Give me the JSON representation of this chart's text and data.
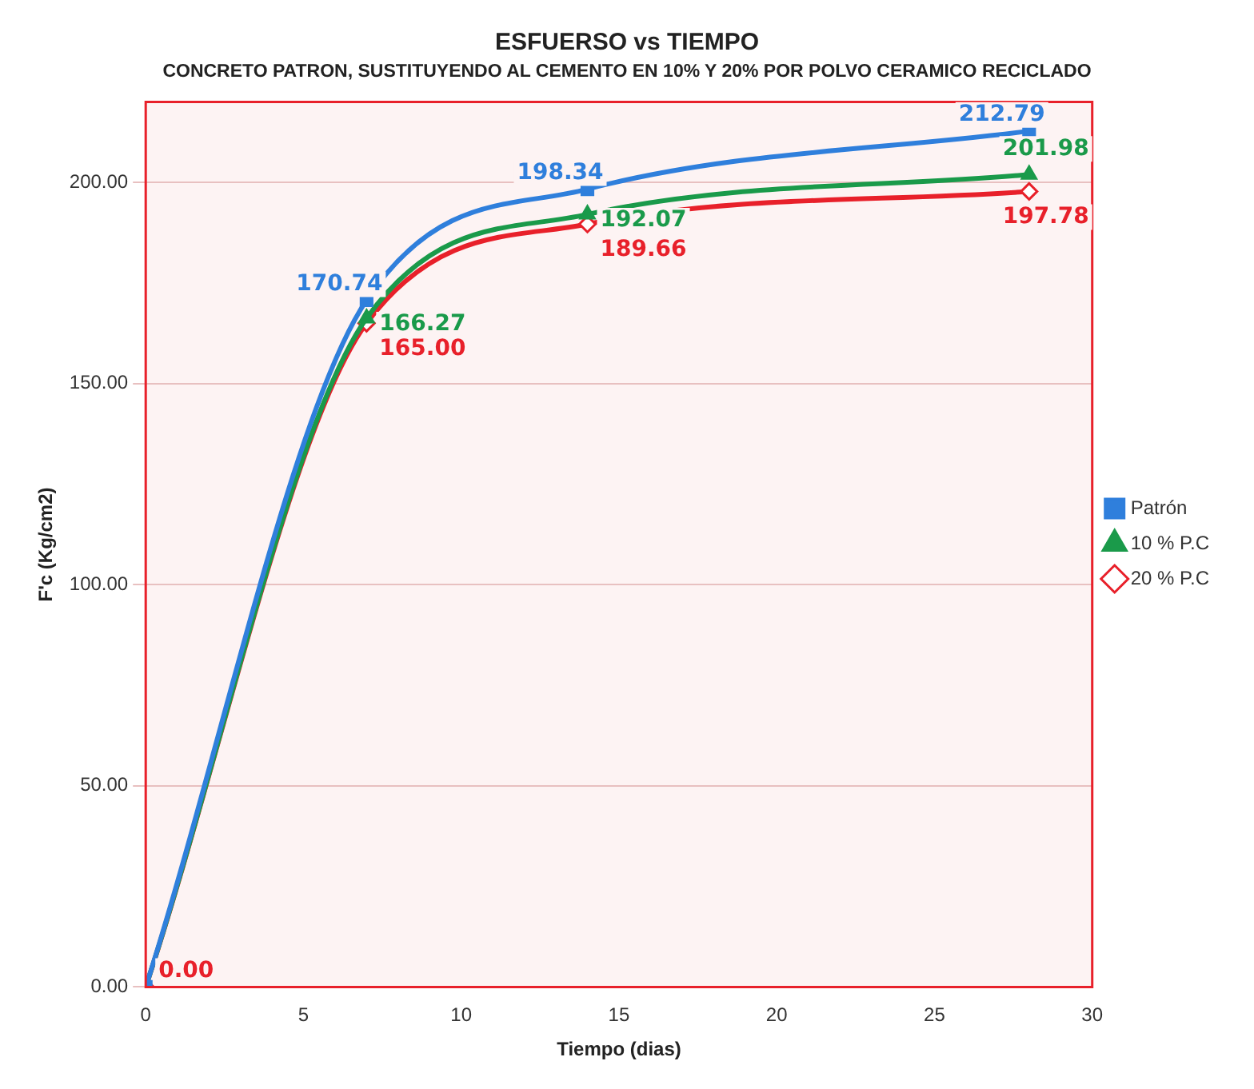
{
  "chart_data": {
    "type": "line",
    "title": "ESFUERSO vs TIEMPO",
    "subtitle": "CONCRETO PATRON, SUSTITUYENDO AL CEMENTO EN 10% Y 20% POR POLVO CERAMICO RECICLADO",
    "xlabel": "Tiempo (dias)",
    "ylabel": "F'c (Kg/cm2)",
    "x": [
      0,
      7,
      14,
      28
    ],
    "series": [
      {
        "name": "Patrón",
        "color": "#2f7fdc",
        "marker": "square",
        "values": [
          0,
          170.74,
          198.34,
          212.79
        ],
        "value_labels": [
          null,
          "170.74",
          "198.34",
          "212.79"
        ]
      },
      {
        "name": "10 % P.C",
        "color": "#1a9a4a",
        "marker": "triangle",
        "values": [
          0,
          166.27,
          192.07,
          201.98
        ],
        "value_labels": [
          null,
          "166.27",
          "192.07",
          "201.98"
        ]
      },
      {
        "name": "20 % P.C",
        "color": "#e8202a",
        "marker": "diamond",
        "values": [
          0,
          165.0,
          189.66,
          197.78
        ],
        "value_labels": [
          "0.00",
          "165.00",
          "189.66",
          "197.78"
        ]
      }
    ],
    "xlim": [
      0,
      30
    ],
    "xticks": [
      0,
      5,
      10,
      15,
      20,
      25,
      30
    ],
    "ylim": [
      0,
      220
    ],
    "yticks": [
      {
        "value": 0,
        "label": "0.00"
      },
      {
        "value": 50,
        "label": "50.00"
      },
      {
        "value": 100,
        "label": "100.00"
      },
      {
        "value": 150,
        "label": "150.00"
      },
      {
        "value": 200,
        "label": "200.00"
      }
    ],
    "grid": "y",
    "legend": "right",
    "line_style": "solid"
  }
}
